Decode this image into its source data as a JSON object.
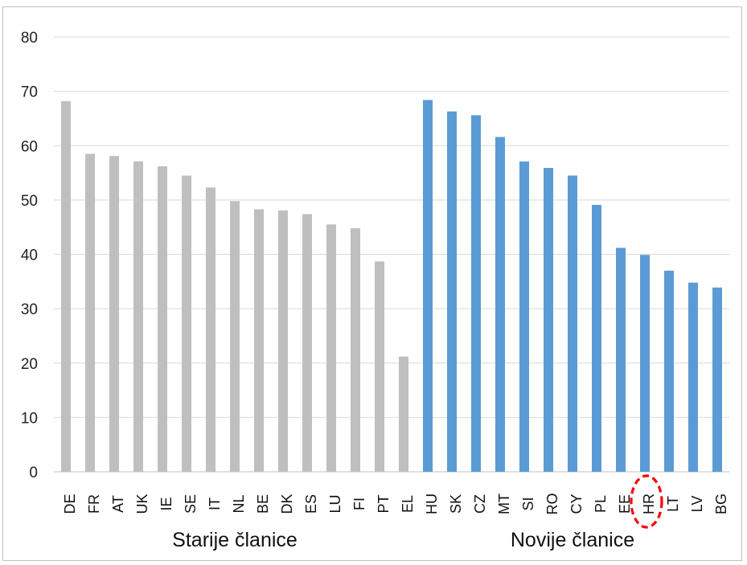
{
  "chart_data": {
    "type": "bar",
    "ylim": [
      0,
      80
    ],
    "yticks": [
      0,
      10,
      20,
      30,
      40,
      50,
      60,
      70,
      80
    ],
    "grid": true,
    "colors": {
      "old": "#bfbfbf",
      "new": "#5b9bd5",
      "highlight": "#ff0000"
    },
    "groups": [
      {
        "label": "Starije članice",
        "color_key": "old",
        "categories": [
          "DE",
          "FR",
          "AT",
          "UK",
          "IE",
          "SE",
          "IT",
          "NL",
          "BE",
          "DK",
          "ES",
          "LU",
          "FI",
          "PT",
          "EL"
        ],
        "values": [
          68.2,
          58.5,
          58.1,
          57.1,
          56.2,
          54.5,
          52.3,
          49.8,
          48.3,
          48.1,
          47.4,
          45.5,
          44.8,
          38.7,
          21.2
        ]
      },
      {
        "label": "Novije članice",
        "color_key": "new",
        "categories": [
          "HU",
          "SK",
          "CZ",
          "MT",
          "SI",
          "RO",
          "CY",
          "PL",
          "EE",
          "HR",
          "LT",
          "LV",
          "BG"
        ],
        "values": [
          68.4,
          66.3,
          65.6,
          61.6,
          57.1,
          55.9,
          54.5,
          49.1,
          41.2,
          39.9,
          37.0,
          34.8,
          33.9
        ]
      }
    ],
    "highlighted_category": "HR"
  }
}
